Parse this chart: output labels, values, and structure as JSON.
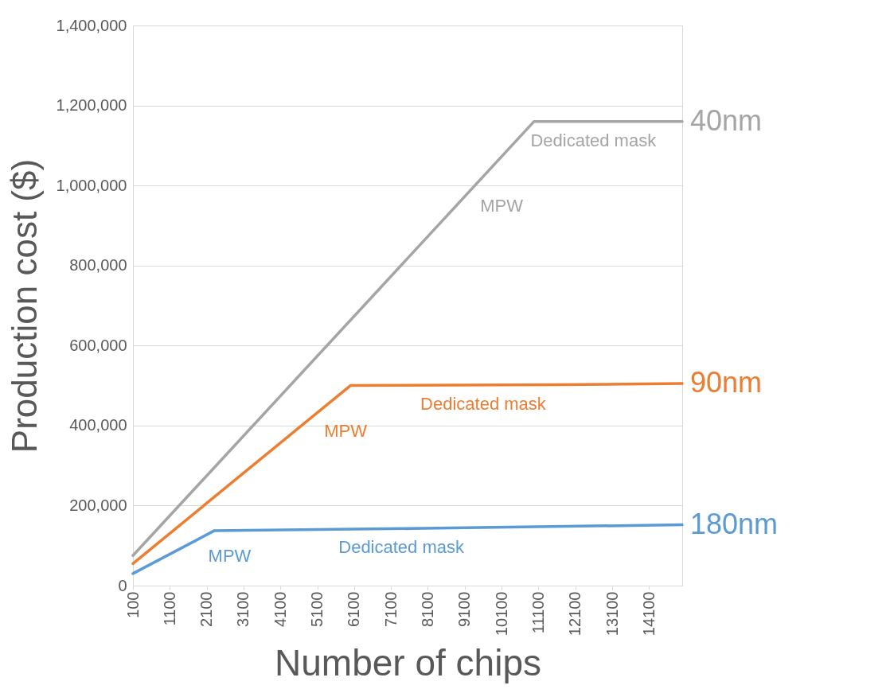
{
  "chart_data": {
    "type": "line",
    "xlabel": "Number of chips",
    "ylabel": "Production cost ($)",
    "xlim": [
      100,
      15000
    ],
    "xticks": [
      100,
      1100,
      2100,
      3100,
      4100,
      5100,
      6100,
      7100,
      8100,
      9100,
      10100,
      11100,
      12100,
      13100,
      14100
    ],
    "ylim": [
      0,
      1400000
    ],
    "yticks": [
      {
        "value": 0,
        "label": "0"
      },
      {
        "value": 200000,
        "label": "200,000"
      },
      {
        "value": 400000,
        "label": "400,000"
      },
      {
        "value": 600000,
        "label": "600,000"
      },
      {
        "value": 800000,
        "label": "800,000"
      },
      {
        "value": 1000000,
        "label": "1,000,000"
      },
      {
        "value": 1200000,
        "label": "1,200,000"
      },
      {
        "value": 1400000,
        "label": "1,400,000"
      }
    ],
    "grid": "y",
    "line_style": "solid",
    "series": [
      {
        "name": "40nm",
        "color": "#a5a5a5",
        "x": [
          100,
          10980,
          15000
        ],
        "values": [
          75000,
          1160000,
          1160000
        ]
      },
      {
        "name": "90nm",
        "color": "#ed7d31",
        "x": [
          100,
          6000,
          11600,
          15000
        ],
        "values": [
          55000,
          500000,
          502000,
          505000
        ]
      },
      {
        "name": "180nm",
        "color": "#5b9bd5",
        "x": [
          100,
          2300,
          8000,
          15000
        ],
        "values": [
          30000,
          137000,
          143000,
          152000
        ]
      }
    ],
    "annotations": [
      "MPW",
      "Dedicated mask",
      "MPW",
      "Dedicated mask",
      "MPW",
      "Dedicated mask"
    ]
  }
}
